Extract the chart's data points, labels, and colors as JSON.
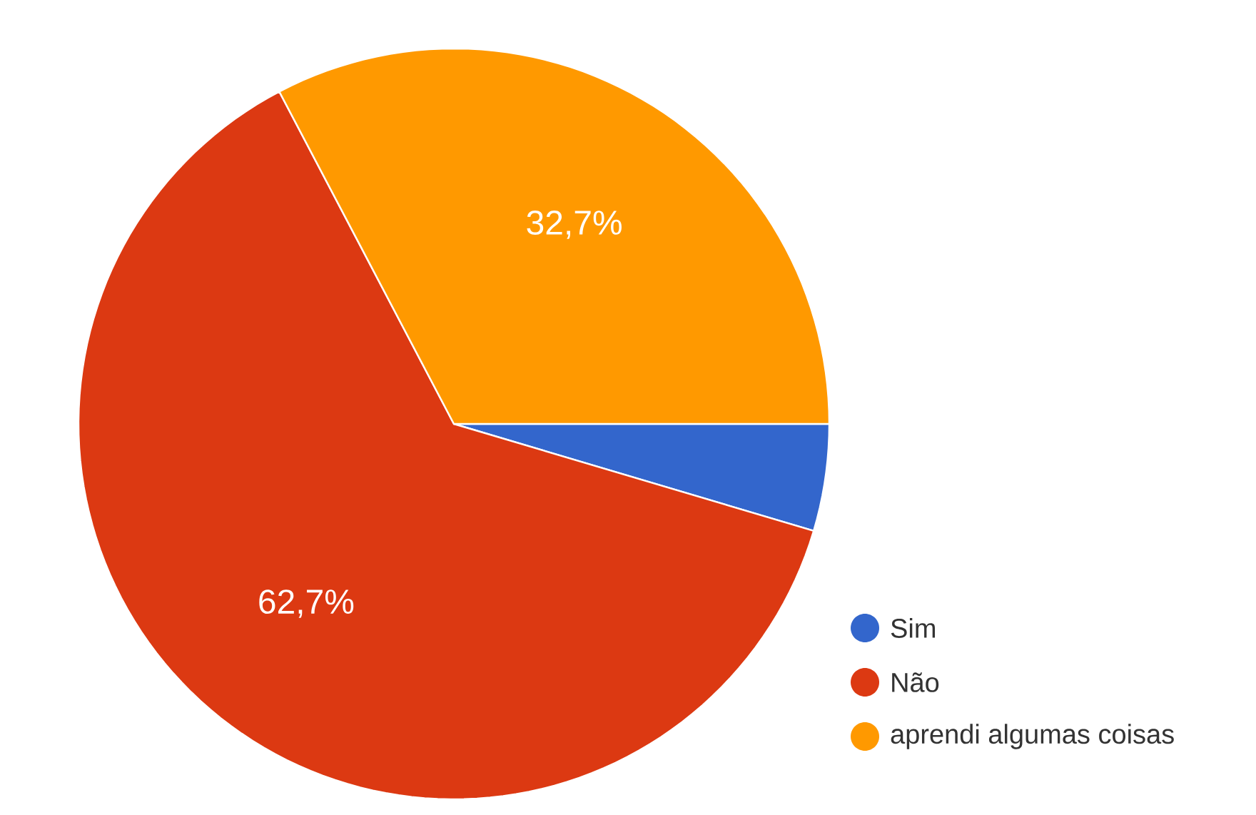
{
  "chart_data": {
    "type": "pie",
    "categories": [
      "Sim",
      "Não",
      "aprendi algumas coisas"
    ],
    "values": [
      4.6,
      62.7,
      32.7
    ],
    "colors": [
      "#3366cc",
      "#dc3912",
      "#ff9900"
    ],
    "value_labels": [
      null,
      "62,7%",
      "32,7%"
    ],
    "legend": "bottom right"
  }
}
